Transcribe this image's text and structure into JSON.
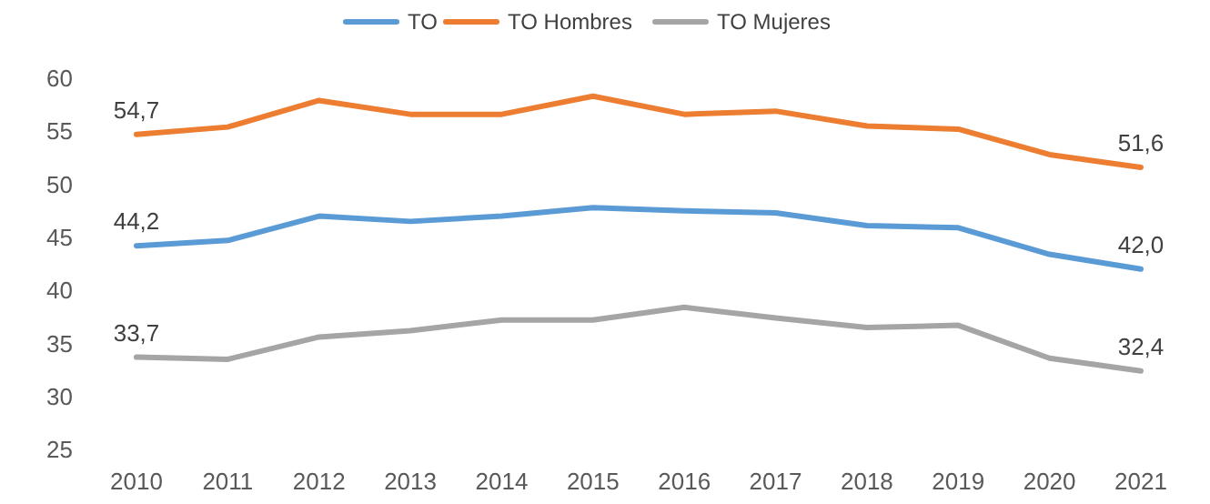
{
  "chart_data": {
    "type": "line",
    "categories": [
      "2010",
      "2011",
      "2012",
      "2013",
      "2014",
      "2015",
      "2016",
      "2017",
      "2018",
      "2019",
      "2020",
      "2021"
    ],
    "series": [
      {
        "name": "TO",
        "color": "#5b9bd5",
        "values": [
          44.2,
          44.7,
          47.0,
          46.5,
          47.0,
          47.8,
          47.5,
          47.3,
          46.1,
          45.9,
          43.4,
          42.0
        ],
        "value_labels": [
          "44,2",
          null,
          null,
          null,
          null,
          null,
          null,
          null,
          null,
          null,
          null,
          "42,0"
        ]
      },
      {
        "name": "TO Hombres",
        "color": "#ed7d31",
        "values": [
          54.7,
          55.4,
          57.9,
          56.6,
          56.6,
          58.3,
          56.6,
          56.9,
          55.5,
          55.2,
          52.8,
          51.6
        ],
        "value_labels": [
          "54,7",
          null,
          null,
          null,
          null,
          null,
          null,
          null,
          null,
          null,
          null,
          "51,6"
        ]
      },
      {
        "name": "TO Mujeres",
        "color": "#a5a5a5",
        "values": [
          33.7,
          33.5,
          35.6,
          36.2,
          37.2,
          37.2,
          38.4,
          37.4,
          36.5,
          36.7,
          33.6,
          32.4
        ],
        "value_labels": [
          "33,7",
          null,
          null,
          null,
          null,
          null,
          null,
          null,
          null,
          null,
          null,
          "32,4"
        ]
      }
    ],
    "ylim": [
      25,
      60
    ],
    "yticks": [
      25,
      30,
      35,
      40,
      45,
      50,
      55,
      60
    ],
    "legend": "top",
    "grid": false,
    "marker": "none",
    "line_style": "solid"
  }
}
